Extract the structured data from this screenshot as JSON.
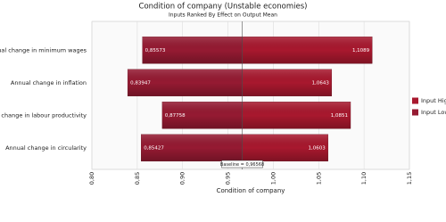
{
  "chart_data": {
    "type": "tornado",
    "title": "Condition of company (Unstable economies)",
    "subtitle": "Inputs Ranked By Effect on Output Mean",
    "xlabel": "Condition of company",
    "categories": [
      "Annual change in minimum wages",
      "Annual change in inflation",
      "Annual change in labour productivity",
      "Annual change in circularity"
    ],
    "series": [
      {
        "name": "Input High",
        "color": "#a8182e",
        "values": [
          1.1089,
          1.0643,
          1.0851,
          1.0603
        ],
        "value_labels": [
          "1,1089",
          "1,0643",
          "1,0851",
          "1,0603"
        ]
      },
      {
        "name": "Input Low",
        "color": "#951a32",
        "values": [
          0.85573,
          0.83947,
          0.87758,
          0.85427
        ],
        "value_labels": [
          "0,85573",
          "0,83947",
          "0,87758",
          "0,85427"
        ]
      }
    ],
    "baseline": {
      "value": 0.96568,
      "label": "Baseline = 0,96568"
    },
    "xlim": [
      0.8,
      1.15
    ],
    "xticks": [
      {
        "value": 0.8,
        "label": "0,80"
      },
      {
        "value": 0.85,
        "label": "0,85"
      },
      {
        "value": 0.9,
        "label": "0,90"
      },
      {
        "value": 0.95,
        "label": "0,95"
      },
      {
        "value": 1.0,
        "label": "1,00"
      },
      {
        "value": 1.05,
        "label": "1,05"
      },
      {
        "value": 1.1,
        "label": "1,10"
      },
      {
        "value": 1.15,
        "label": "1,15"
      }
    ],
    "grid": true
  }
}
